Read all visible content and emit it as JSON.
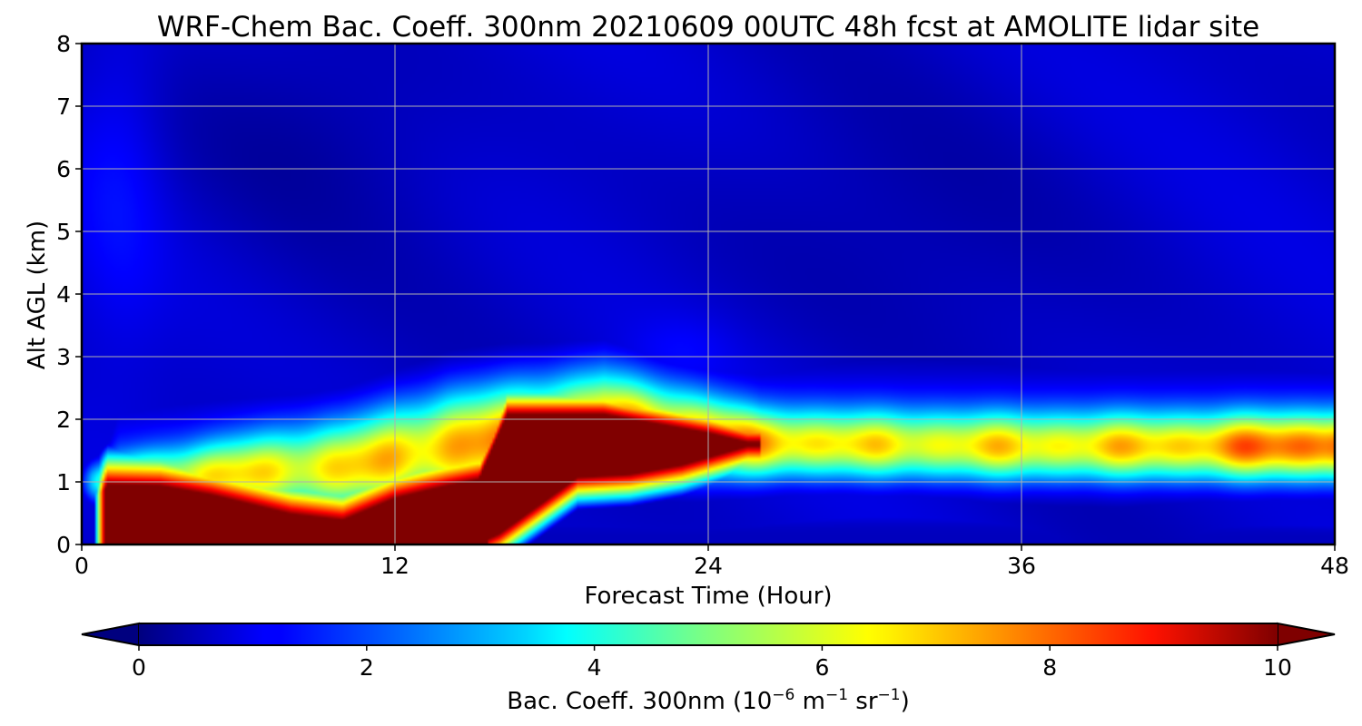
{
  "chart_data": {
    "type": "heatmap",
    "title": "WRF-Chem Bac. Coeff. 300nm  20210609 00UTC 48h fcst at AMOLITE lidar site",
    "xlabel": "Forecast Time (Hour)",
    "ylabel": "Alt AGL (km)",
    "xlim": [
      0,
      48
    ],
    "ylim": [
      0,
      8
    ],
    "xticks": [
      "0",
      "12",
      "24",
      "36",
      "48"
    ],
    "yticks": [
      "0",
      "1",
      "2",
      "3",
      "4",
      "5",
      "6",
      "7",
      "8"
    ],
    "grid": true,
    "colorscale": "jet",
    "colorbar": {
      "label_prefix": "Bac. Coeff. 300nm  (10",
      "label_exp1": "−6",
      "label_mid": " m",
      "label_exp2": "−1",
      "label_mid2": " sr",
      "label_exp3": "−1",
      "label_suffix": ")",
      "range": [
        0,
        10
      ],
      "ticks": [
        "0",
        "2",
        "4",
        "6",
        "8",
        "10"
      ],
      "extend": "both",
      "orientation": "horizontal"
    },
    "features": {
      "surface_layer": {
        "x_start": 0.6,
        "x_end": 15.5,
        "top_km": 0.85,
        "value": 10
      },
      "elevated_plume": {
        "x_start": 15.5,
        "x_end": 25.5,
        "base_km": 0.9,
        "top_km": 2.05,
        "value": 10
      },
      "aerosol_layer": {
        "x_start": 1,
        "x_end": 48,
        "center_km": 1.6,
        "value": 5.5
      },
      "free_troposphere_value": 0.7
    }
  }
}
